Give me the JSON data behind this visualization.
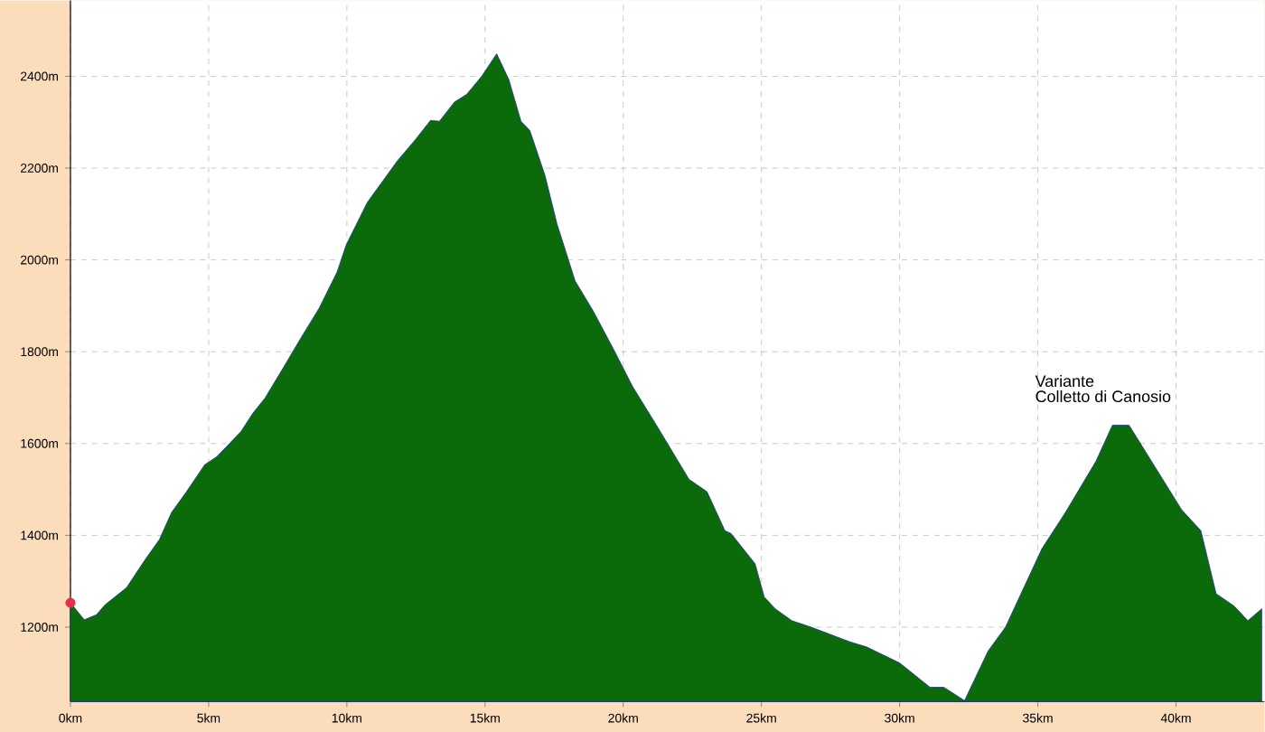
{
  "chart_data": {
    "type": "area",
    "x": [
      0,
      0.5,
      0.94,
      1.26,
      2.03,
      2.68,
      3.22,
      3.66,
      4.2,
      4.86,
      5.29,
      6.17,
      6.6,
      7.04,
      7.69,
      8.34,
      9.0,
      9.65,
      9.98,
      10.74,
      11.29,
      11.83,
      12.48,
      13.03,
      13.35,
      13.9,
      14.34,
      14.88,
      15.42,
      15.86,
      16.3,
      16.62,
      17.17,
      17.6,
      18.26,
      18.91,
      19.67,
      20.33,
      21.2,
      22.38,
      23.03,
      23.68,
      23.9,
      24.77,
      25.1,
      25.5,
      26.1,
      26.8,
      28.2,
      28.8,
      30.0,
      31.1,
      31.6,
      32.35,
      33.2,
      33.83,
      35.15,
      36.0,
      37.1,
      37.7,
      38.3,
      39.25,
      40.2,
      40.9,
      41.45,
      42.1,
      42.6,
      43.1
    ],
    "series": [
      {
        "color": "#0b6b0b",
        "values": [
          1253,
          1216,
          1227,
          1249,
          1286,
          1345,
          1391,
          1450,
          1495,
          1554,
          1571,
          1626,
          1666,
          1699,
          1764,
          1830,
          1895,
          1974,
          2033,
          2125,
          2171,
          2216,
          2262,
          2304,
          2302,
          2344,
          2361,
          2400,
          2449,
          2393,
          2302,
          2282,
          2184,
          2079,
          1954,
          1889,
          1803,
          1725,
          1640,
          1522,
          1495,
          1410,
          1404,
          1338,
          1266,
          1240,
          1214,
          1200,
          1168,
          1157,
          1122,
          1069,
          1069,
          1040,
          1148,
          1200,
          1371,
          1450,
          1561,
          1640,
          1640,
          1548,
          1456,
          1410,
          1273,
          1246,
          1214,
          1240
        ]
      },
      {
        "type": "scatter",
        "x": [
          0
        ],
        "values": [
          1253
        ],
        "color": "#e8304a"
      }
    ],
    "xlim": [
      0,
      43.2
    ],
    "ylim": [
      1038,
      2565
    ],
    "xticks": [
      {
        "value": 0,
        "label": "0km"
      },
      {
        "value": 5,
        "label": "5km"
      },
      {
        "value": 10,
        "label": "10km"
      },
      {
        "value": 15,
        "label": "15km"
      },
      {
        "value": 20,
        "label": "20km"
      },
      {
        "value": 25,
        "label": "25km"
      },
      {
        "value": 30,
        "label": "30km"
      },
      {
        "value": 35,
        "label": "35km"
      },
      {
        "value": 40,
        "label": "40km"
      }
    ],
    "yticks": [
      {
        "value": 1200,
        "label": "1200m"
      },
      {
        "value": 1400,
        "label": "1400m"
      },
      {
        "value": 1600,
        "label": "1600m"
      },
      {
        "value": 1800,
        "label": "1800m"
      },
      {
        "value": 2000,
        "label": "2000m"
      },
      {
        "value": 2200,
        "label": "2200m"
      },
      {
        "value": 2400,
        "label": "2400m"
      }
    ],
    "grid": true,
    "annotations": [
      {
        "text": "Variante",
        "x": 37.7,
        "y": 1640
      },
      "Colletto di Canosio"
    ]
  }
}
